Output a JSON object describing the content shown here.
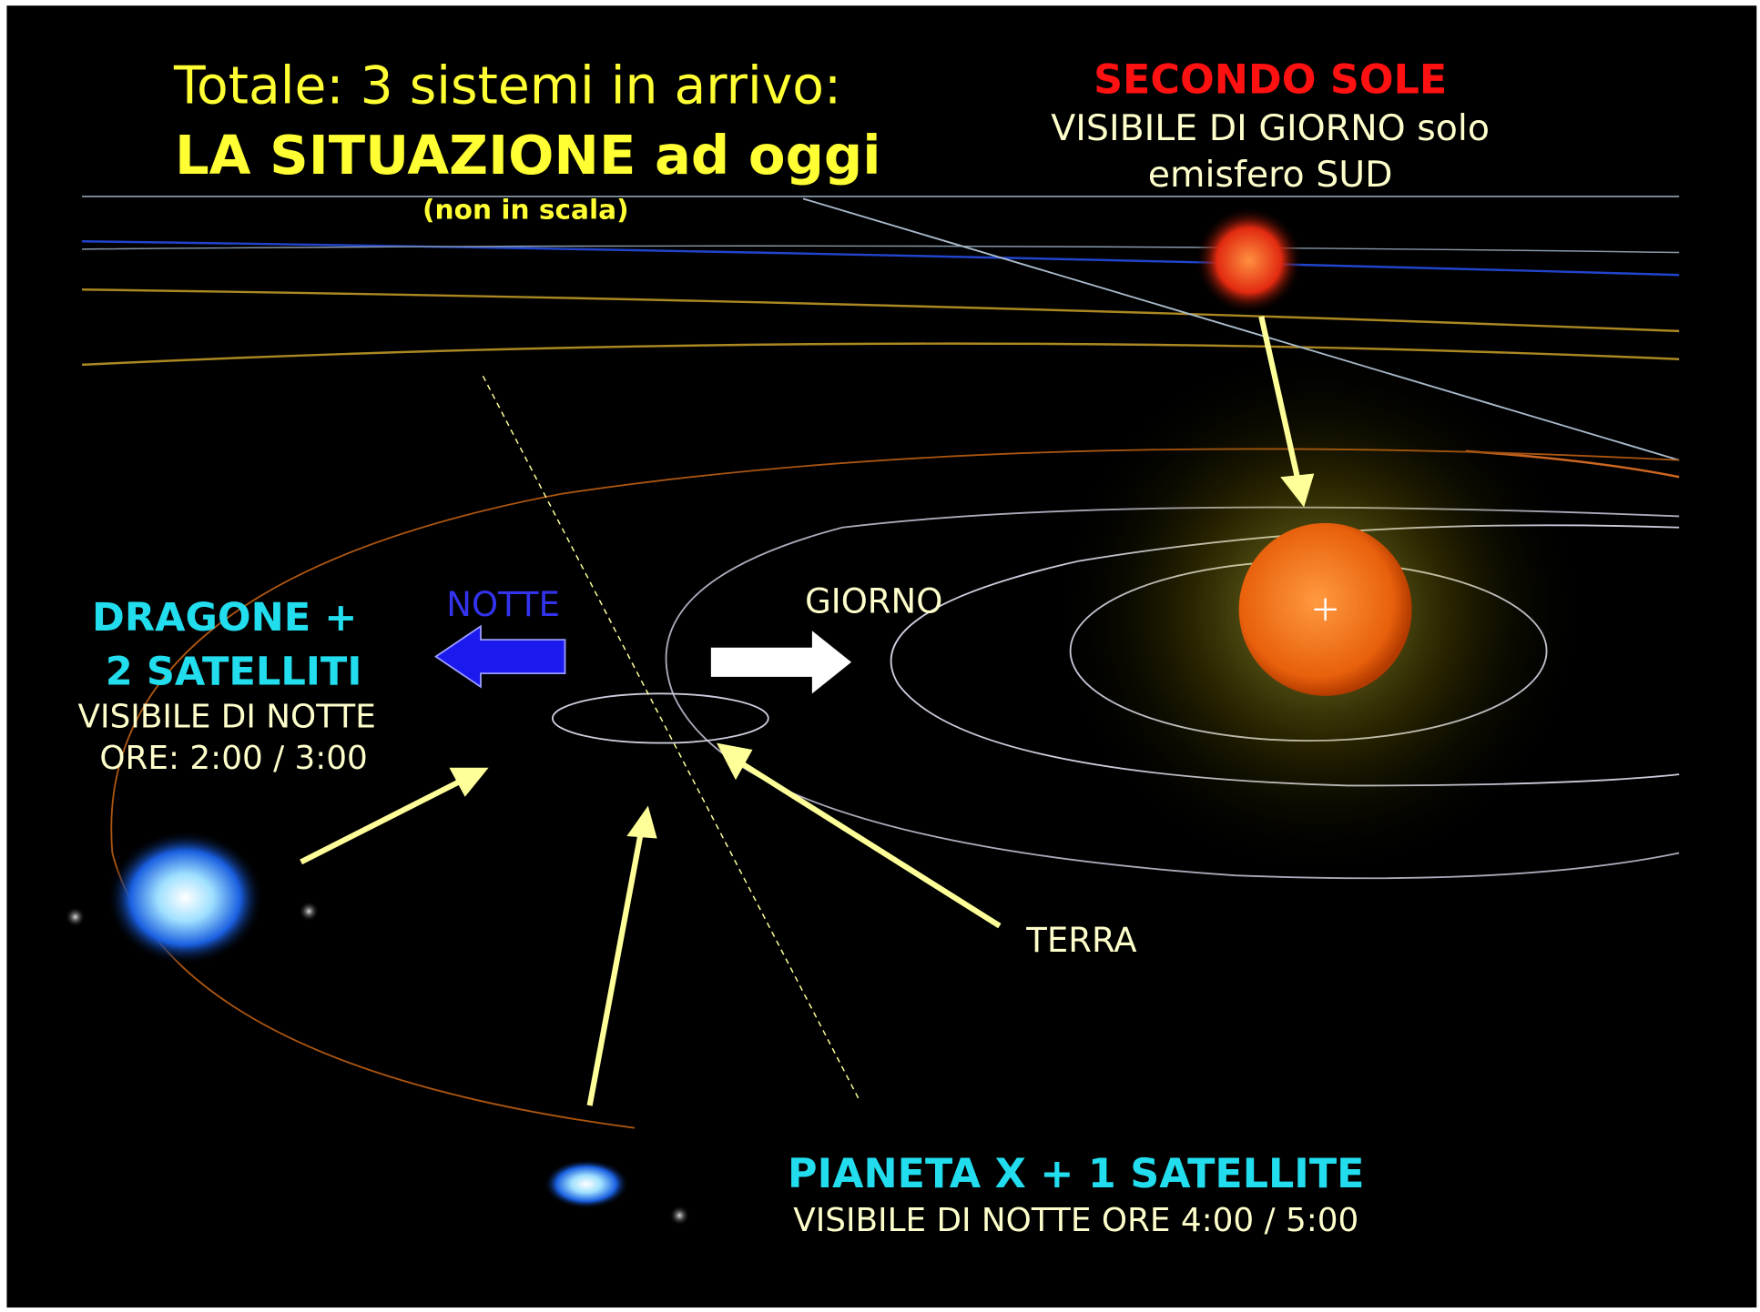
{
  "title": {
    "line1": "Totale: 3 sistemi in arrivo:",
    "line2": "LA SITUAZIONE ad oggi",
    "note": "(non in scala)"
  },
  "second_sun": {
    "title": "SECONDO SOLE",
    "line1": "VISIBILE DI GIORNO solo",
    "line2": "emisfero SUD"
  },
  "dragone": {
    "line1": "DRAGONE +",
    "line2": "2 SATELLITI",
    "line3": "VISIBILE DI NOTTE",
    "line4": "ORE: 2:00 / 3:00"
  },
  "labels": {
    "notte": "NOTTE",
    "giorno": "GIORNO",
    "terra": "TERRA"
  },
  "pianeta": {
    "line1": "PIANETA X + 1 SATELLITE",
    "line2": "VISIBILE DI NOTTE ORE 4:00 / 5:00"
  }
}
